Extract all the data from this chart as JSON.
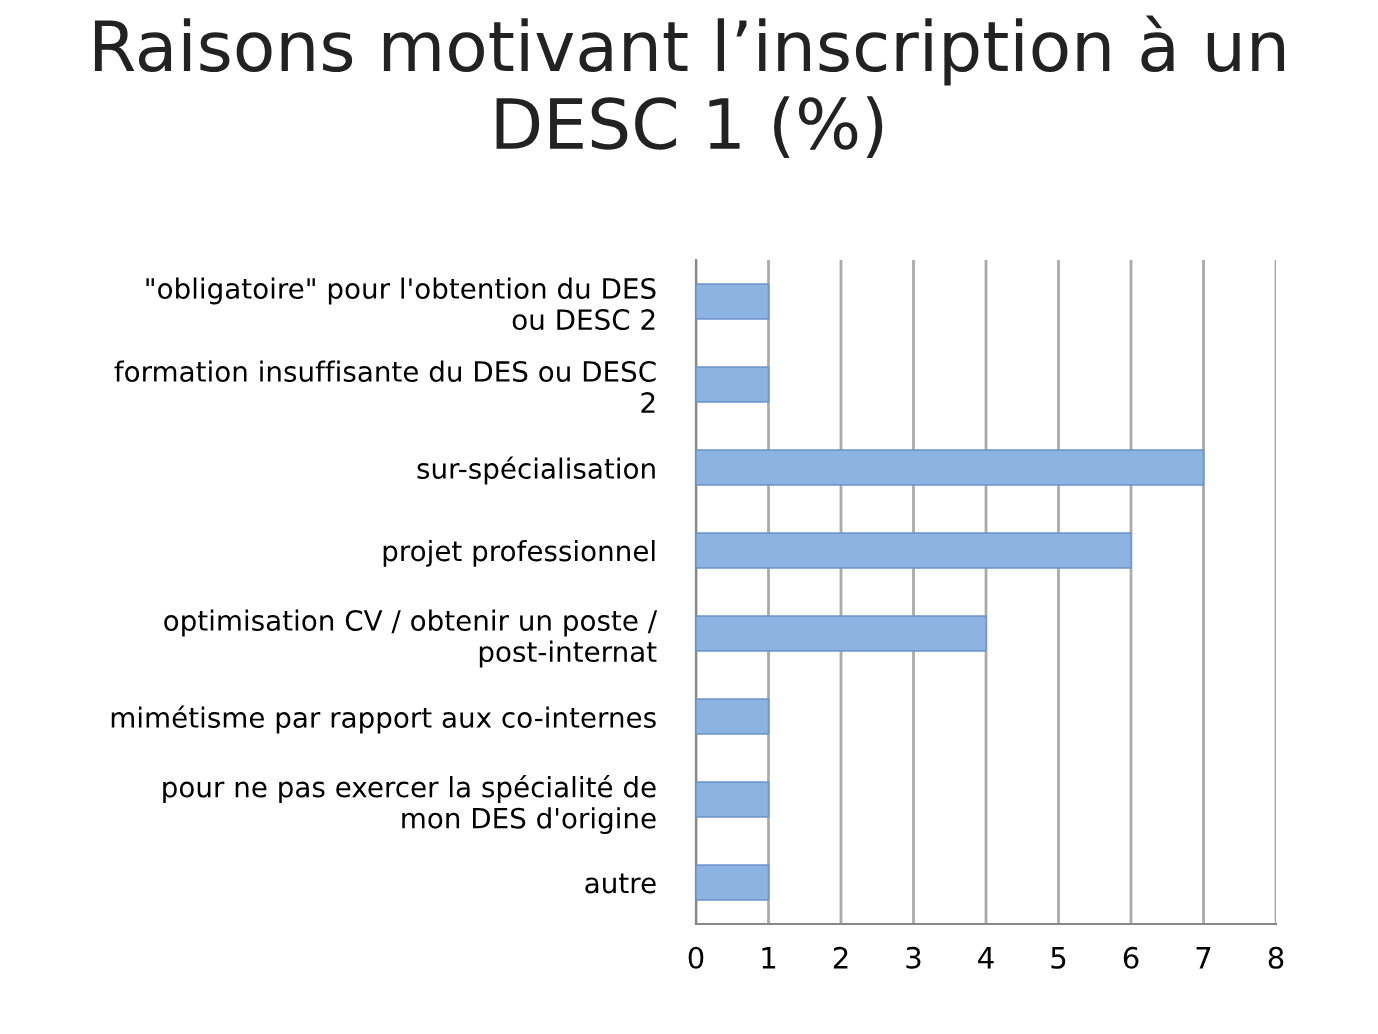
{
  "chart_data": {
    "type": "bar",
    "orientation": "horizontal",
    "title": "Raisons motivant l’inscription à un DESC 1 (%)",
    "categories": [
      "\"obligatoire\" pour l'obtention du DES ou DESC 2",
      "formation insuffisante du DES ou DESC 2",
      "sur-spécialisation",
      "projet professionnel",
      "optimisation CV / obtenir un poste / post-internat",
      "mimétisme par rapport aux co-internes",
      "pour ne pas exercer la spécialité de mon DES d'origine",
      "autre"
    ],
    "values": [
      1,
      1,
      7,
      6,
      4,
      1,
      1,
      1
    ],
    "color": "#8db3e2",
    "xlim": [
      0,
      8
    ],
    "xticks": [
      0,
      1,
      2,
      3,
      4,
      5,
      6,
      7,
      8
    ],
    "grid": "x",
    "legend": false
  }
}
